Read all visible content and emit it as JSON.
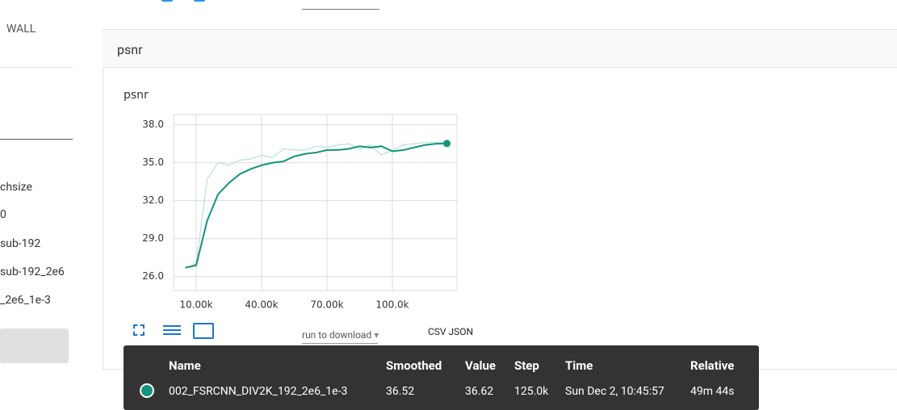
{
  "sidebar": {
    "label": "WALL",
    "runs": [
      "chsize",
      "0",
      "sub-192",
      "sub-192_2e6",
      "_2e6_1e-3"
    ]
  },
  "card": {
    "header": "psnr"
  },
  "chart_data": {
    "type": "line",
    "title": "psnr",
    "x": [
      5000,
      10000,
      15000,
      20000,
      25000,
      30000,
      35000,
      40000,
      45000,
      50000,
      55000,
      60000,
      65000,
      70000,
      75000,
      80000,
      85000,
      90000,
      95000,
      100000,
      105000,
      110000,
      115000,
      120000,
      125000
    ],
    "series": [
      {
        "name": "Smoothed",
        "color": "#12947f",
        "values": [
          26.7,
          26.9,
          30.4,
          32.5,
          33.4,
          34.1,
          34.5,
          34.8,
          35.0,
          35.1,
          35.5,
          35.7,
          35.8,
          36.0,
          36.0,
          36.1,
          36.3,
          36.2,
          36.3,
          35.9,
          36.0,
          36.2,
          36.4,
          36.5,
          36.52
        ]
      },
      {
        "name": "Value",
        "color": "#c3e6e0",
        "values": [
          26.7,
          27.0,
          33.7,
          35.0,
          34.8,
          35.2,
          35.3,
          35.6,
          35.4,
          36.1,
          36.0,
          36.0,
          36.3,
          36.2,
          36.4,
          36.5,
          36.1,
          36.4,
          35.6,
          36.0,
          36.4,
          36.5,
          36.6,
          36.6,
          36.62
        ]
      }
    ],
    "xlim": [
      -370,
      129630
    ],
    "ylim": [
      24.9,
      38.8
    ],
    "xticks": [
      {
        "value": 10000,
        "label": "10.00k"
      },
      {
        "value": 40000,
        "label": "40.00k"
      },
      {
        "value": 70000,
        "label": "70.00k"
      },
      {
        "value": 100000,
        "label": "100.0k"
      }
    ],
    "yticks": [
      {
        "value": 26,
        "label": "26.0"
      },
      {
        "value": 29,
        "label": "29.0"
      },
      {
        "value": 32,
        "label": "32.0"
      },
      {
        "value": 35,
        "label": "35.0"
      },
      {
        "value": 38,
        "label": "38.0"
      }
    ],
    "grid": true
  },
  "toolbar": {
    "download": "run to download",
    "formats": "CSV JSON"
  },
  "tooltip": {
    "headers": [
      "Name",
      "Smoothed",
      "Value",
      "Step",
      "Time",
      "Relative"
    ],
    "row": [
      "002_FSRCNN_DIV2K_192_2e6_1e-3",
      "36.52",
      "36.62",
      "125.0k",
      "Sun Dec 2, 10:45:57",
      "49m 44s"
    ]
  }
}
